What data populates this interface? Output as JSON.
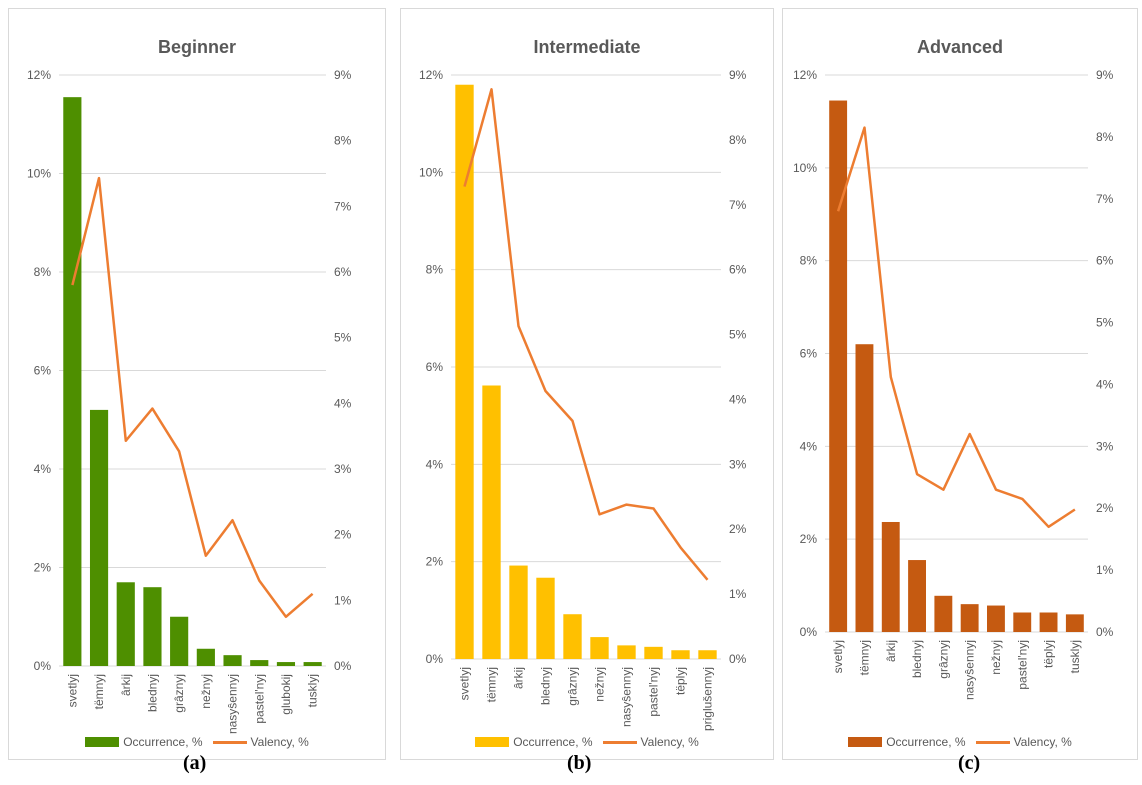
{
  "chart_data": [
    {
      "type": "bar",
      "title": "Beginner",
      "categories": [
        "svetlyj",
        "tёmnyj",
        "ârkij",
        "blednyj",
        "grâznyj",
        "nežnyj",
        "nasyŝennyj",
        "pastel'nyj",
        "glubokij",
        "tusklyj"
      ],
      "series": [
        {
          "name": "Occurrence, %",
          "kind": "bar",
          "axis": "left",
          "color": "#4e8f00",
          "values": [
            11.55,
            5.2,
            1.7,
            1.6,
            1.0,
            0.35,
            0.22,
            0.12,
            0.08,
            0.08
          ]
        },
        {
          "name": "Valency, %",
          "kind": "line",
          "axis": "right",
          "color": "#ed7d31",
          "values": [
            5.8,
            7.43,
            3.43,
            3.92,
            3.27,
            1.68,
            2.22,
            1.3,
            0.75,
            1.1
          ]
        }
      ],
      "ylim_left": [
        0,
        12
      ],
      "yticks_left": [
        "0%",
        "2%",
        "4%",
        "6%",
        "8%",
        "10%",
        "12%"
      ],
      "ylim_right": [
        0,
        9
      ],
      "yticks_right": [
        "0%",
        "1%",
        "2%",
        "3%",
        "4%",
        "5%",
        "6%",
        "7%",
        "8%",
        "9%"
      ],
      "legend_position": "bottom"
    },
    {
      "type": "bar",
      "title": "Intermediate",
      "categories": [
        "svetlyj",
        "tёmnyj",
        "ârkij",
        "blednyj",
        "grâznyj",
        "nežnyj",
        "nasyŝennyj",
        "pastel'nyj",
        "tёplyj",
        "priglušennyj"
      ],
      "series": [
        {
          "name": "Occurrence, %",
          "kind": "bar",
          "axis": "left",
          "color": "#ffc000",
          "values": [
            11.8,
            5.62,
            1.92,
            1.67,
            0.92,
            0.45,
            0.28,
            0.25,
            0.18,
            0.18
          ]
        },
        {
          "name": "Valency, %",
          "kind": "line",
          "axis": "right",
          "color": "#ed7d31",
          "values": [
            7.28,
            8.78,
            5.13,
            4.13,
            3.67,
            2.23,
            2.38,
            2.32,
            1.72,
            1.22
          ]
        }
      ],
      "ylim_left": [
        0,
        12
      ],
      "yticks_left": [
        "0%",
        "2%",
        "4%",
        "6%",
        "8%",
        "10%",
        "12%"
      ],
      "ylim_right": [
        0,
        9
      ],
      "yticks_right": [
        "0%",
        "1%",
        "2%",
        "3%",
        "4%",
        "5%",
        "6%",
        "7%",
        "8%",
        "9%"
      ],
      "legend_position": "bottom"
    },
    {
      "type": "bar",
      "title": "Advanced",
      "categories": [
        "svetlyj",
        "tёmnyj",
        "ârkij",
        "blednyj",
        "grâznyj",
        "nasyŝennyj",
        "nežnyj",
        "pastel'nyj",
        "tёplyj",
        "tusklyj"
      ],
      "series": [
        {
          "name": "Occurrence, %",
          "kind": "bar",
          "axis": "left",
          "color": "#c55a11",
          "values": [
            11.45,
            6.2,
            2.37,
            1.55,
            0.78,
            0.6,
            0.57,
            0.42,
            0.42,
            0.38
          ]
        },
        {
          "name": "Valency, %",
          "kind": "line",
          "axis": "right",
          "color": "#ed7d31",
          "values": [
            6.8,
            8.15,
            4.12,
            2.55,
            2.3,
            3.2,
            2.3,
            2.15,
            1.7,
            1.98
          ]
        }
      ],
      "ylim_left": [
        0,
        12
      ],
      "yticks_left": [
        "0%",
        "2%",
        "4%",
        "6%",
        "8%",
        "10%",
        "12%"
      ],
      "ylim_right": [
        0,
        9
      ],
      "yticks_right": [
        "0%",
        "1%",
        "2%",
        "3%",
        "4%",
        "5%",
        "6%",
        "7%",
        "8%",
        "9%"
      ],
      "legend_position": "bottom"
    }
  ],
  "subfigure_labels": [
    "(a)",
    "(b)",
    "(c)"
  ]
}
